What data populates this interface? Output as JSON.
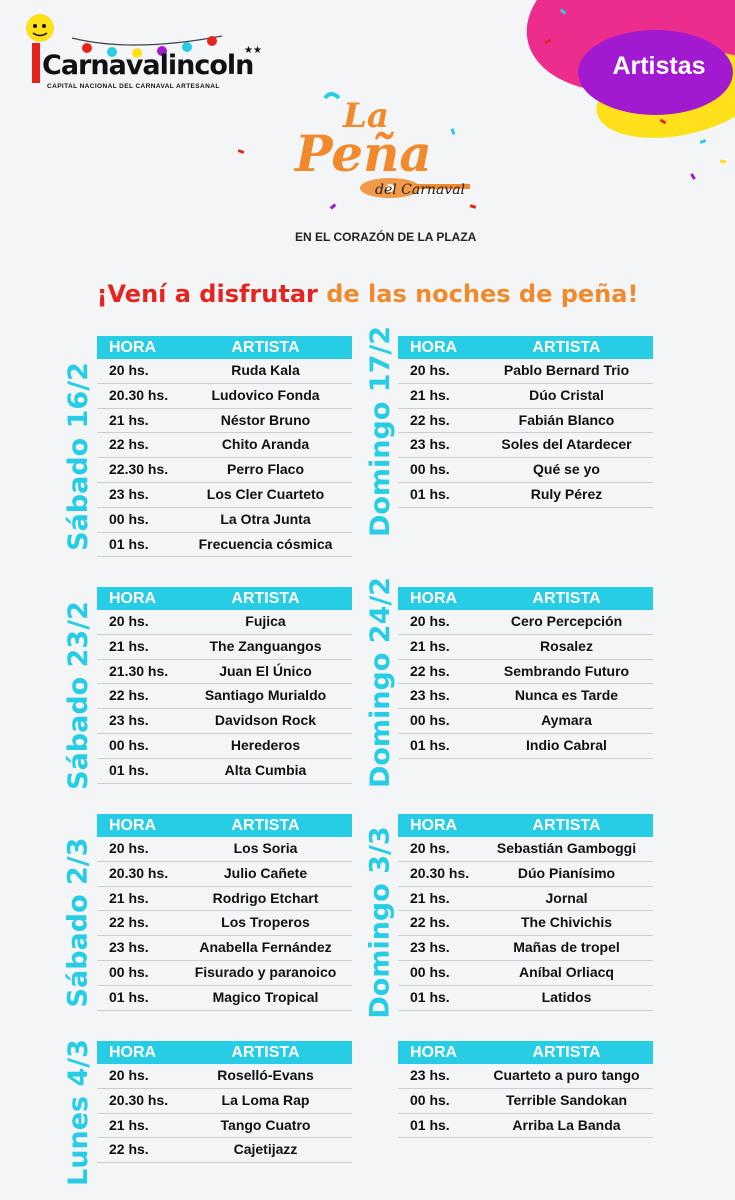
{
  "header": {
    "logo_text": "Carnavalincoln",
    "logo_subtitle": "CAPITAL NACIONAL DEL CARNAVAL ARTESANAL",
    "badge": "Artistas",
    "pena_la": "La",
    "pena_pena": "Peña",
    "pena_del": "del Carnaval",
    "pena_plaza": "EN EL CORAZÓN DE LA PLAZA"
  },
  "headline": {
    "part1": "¡Vení a disfrutar",
    "part2": "de las noches de peña!"
  },
  "columns": {
    "hora": "HORA",
    "artista": "ARTISTA"
  },
  "colors": {
    "accent": "#27cde5",
    "headline_red": "#e52420",
    "headline_orange": "#f18a2c",
    "badge_purple": "#a21ad0"
  },
  "days": [
    {
      "label": "Sábado 16/2",
      "rows": [
        [
          "20 hs.",
          "Ruda Kala"
        ],
        [
          "20.30 hs.",
          "Ludovico Fonda"
        ],
        [
          "21 hs.",
          "Néstor Bruno"
        ],
        [
          "22 hs.",
          "Chito Aranda"
        ],
        [
          "22.30 hs.",
          "Perro Flaco"
        ],
        [
          "23 hs.",
          "Los Cler Cuarteto"
        ],
        [
          "00 hs.",
          "La Otra Junta"
        ],
        [
          "01 hs.",
          "Frecuencia cósmica"
        ]
      ]
    },
    {
      "label": "Domingo 17/2",
      "rows": [
        [
          "20 hs.",
          "Pablo Bernard Trio"
        ],
        [
          "21 hs.",
          "Dúo Cristal"
        ],
        [
          "22 hs.",
          "Fabián Blanco"
        ],
        [
          "23 hs.",
          "Soles del Atardecer"
        ],
        [
          "00 hs.",
          "Qué se yo"
        ],
        [
          "01 hs.",
          "Ruly Pérez"
        ]
      ]
    },
    {
      "label": "Sábado 23/2",
      "rows": [
        [
          "20 hs.",
          "Fujica"
        ],
        [
          "21 hs.",
          "The Zanguangos"
        ],
        [
          "21.30 hs.",
          "Juan El Único"
        ],
        [
          "22 hs.",
          "Santiago Murialdo"
        ],
        [
          "23 hs.",
          "Davidson Rock"
        ],
        [
          "00 hs.",
          "Herederos"
        ],
        [
          "01 hs.",
          "Alta Cumbia"
        ]
      ]
    },
    {
      "label": "Domingo 24/2",
      "rows": [
        [
          "20 hs.",
          "Cero Percepción"
        ],
        [
          "21 hs.",
          "Rosalez"
        ],
        [
          "22 hs.",
          "Sembrando Futuro"
        ],
        [
          "23 hs.",
          "Nunca es Tarde"
        ],
        [
          "00 hs.",
          "Aymara"
        ],
        [
          "01 hs.",
          "Indio Cabral"
        ]
      ]
    },
    {
      "label": "Sábado 2/3",
      "rows": [
        [
          "20 hs.",
          "Los Soria"
        ],
        [
          "20.30 hs.",
          "Julio Cañete"
        ],
        [
          "21 hs.",
          "Rodrigo Etchart"
        ],
        [
          "22 hs.",
          "Los Troperos"
        ],
        [
          "23 hs.",
          "Anabella Fernández"
        ],
        [
          "00 hs.",
          "Fisurado y paranoico"
        ],
        [
          "01 hs.",
          "Magico Tropical"
        ]
      ]
    },
    {
      "label": "Domingo 3/3",
      "rows": [
        [
          "20 hs.",
          "Sebastián Gamboggi"
        ],
        [
          "20.30 hs.",
          "Dúo Pianísimo"
        ],
        [
          "21 hs.",
          "Jornal"
        ],
        [
          "22 hs.",
          "The Chivichis"
        ],
        [
          "23 hs.",
          "Mañas de tropel"
        ],
        [
          "00 hs.",
          "Aníbal Orliacq"
        ],
        [
          "01 hs.",
          "Latidos"
        ]
      ]
    },
    {
      "label": "Lunes 4/3",
      "rows": [
        [
          "20 hs.",
          "Roselló-Evans"
        ],
        [
          "20.30 hs.",
          "La Loma Rap"
        ],
        [
          "21 hs.",
          "Tango Cuatro"
        ],
        [
          "22 hs.",
          "Cajetijazz"
        ]
      ]
    },
    {
      "label": "",
      "rows": [
        [
          "23 hs.",
          "Cuarteto a puro tango"
        ],
        [
          "00 hs.",
          "Terrible Sandokan"
        ],
        [
          "01 hs.",
          "Arriba La Banda"
        ]
      ]
    }
  ]
}
